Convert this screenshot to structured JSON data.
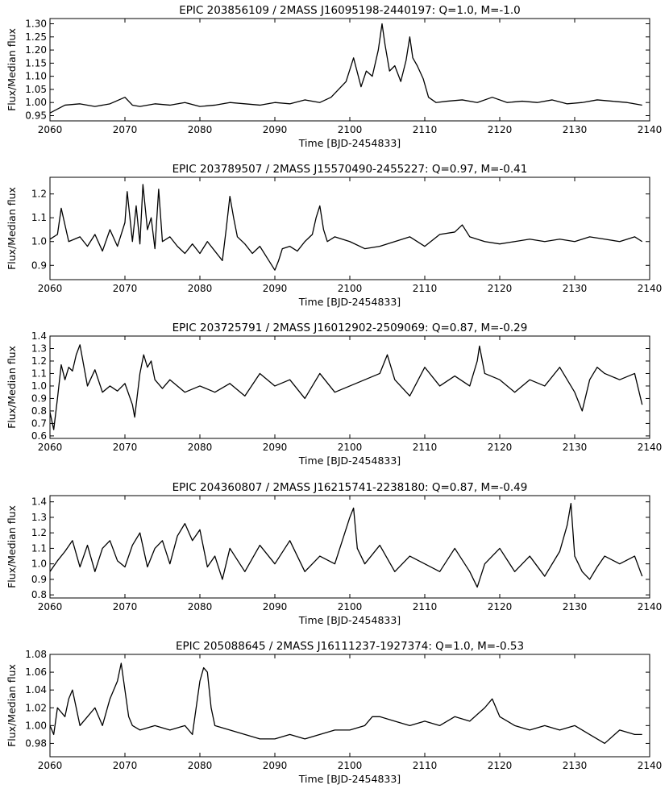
{
  "figure": {
    "background": "#ffffff",
    "line_color": "#000000"
  },
  "chart_data": [
    {
      "type": "line",
      "title": "EPIC 203856109 / 2MASS J16095198-2440197: Q=1.0, M=-1.0",
      "xlabel": "Time [BJD-2454833]",
      "ylabel": "Flux/Median flux",
      "xlim": [
        2060,
        2140
      ],
      "ylim": [
        0.93,
        1.32
      ],
      "xticks": [
        2060,
        2070,
        2080,
        2090,
        2100,
        2110,
        2120,
        2130,
        2140
      ],
      "yticks": [
        0.95,
        1.0,
        1.05,
        1.1,
        1.15,
        1.2,
        1.25,
        1.3
      ],
      "ytick_labels": [
        "0.95",
        "1.00",
        "1.05",
        "1.10",
        "1.15",
        "1.20",
        "1.25",
        "1.30"
      ],
      "grid": false,
      "series": [
        {
          "x": [
            2060.0,
            2062.0,
            2064.0,
            2066.0,
            2068.0,
            2070.0,
            2071.0,
            2072.0,
            2074.0,
            2076.0,
            2078.0,
            2080.0,
            2082.0,
            2084.0,
            2086.0,
            2088.0,
            2090.0,
            2092.0,
            2094.0,
            2096.0,
            2097.5,
            2098.5,
            2099.5,
            2100.5,
            2101.5,
            2102.2,
            2103.0,
            2103.8,
            2104.3,
            2104.7,
            2105.3,
            2106.0,
            2106.8,
            2107.5,
            2108.0,
            2108.4,
            2109.0,
            2109.8,
            2110.5,
            2111.5,
            2113.0,
            2115.0,
            2117.0,
            2119.0,
            2121.0,
            2123.0,
            2125.0,
            2127.0,
            2129.0,
            2131.0,
            2133.0,
            2135.0,
            2137.0,
            2139.0
          ],
          "y": [
            0.96,
            0.99,
            0.995,
            0.985,
            0.995,
            1.02,
            0.99,
            0.985,
            0.995,
            0.99,
            1.0,
            0.985,
            0.99,
            1.0,
            0.995,
            0.99,
            1.0,
            0.995,
            1.01,
            1.0,
            1.02,
            1.05,
            1.08,
            1.17,
            1.06,
            1.12,
            1.1,
            1.2,
            1.3,
            1.22,
            1.12,
            1.14,
            1.08,
            1.16,
            1.25,
            1.17,
            1.14,
            1.09,
            1.02,
            1.0,
            1.005,
            1.01,
            1.0,
            1.02,
            1.0,
            1.005,
            1.0,
            1.01,
            0.995,
            1.0,
            1.01,
            1.005,
            1.0,
            0.99
          ]
        }
      ]
    },
    {
      "type": "line",
      "title": "EPIC 203789507 / 2MASS J15570490-2455227: Q=0.97, M=-0.41",
      "xlabel": "Time [BJD-2454833]",
      "ylabel": "Flux/Median flux",
      "xlim": [
        2060,
        2140
      ],
      "ylim": [
        0.84,
        1.27
      ],
      "xticks": [
        2060,
        2070,
        2080,
        2090,
        2100,
        2110,
        2120,
        2130,
        2140
      ],
      "yticks": [
        0.9,
        1.0,
        1.1,
        1.2
      ],
      "ytick_labels": [
        "0.9",
        "1.0",
        "1.1",
        "1.2"
      ],
      "grid": false,
      "series": [
        {
          "x": [
            2060.0,
            2061.0,
            2061.5,
            2062.5,
            2064.0,
            2065.0,
            2066.0,
            2067.0,
            2068.0,
            2069.0,
            2070.0,
            2070.3,
            2071.0,
            2071.5,
            2072.0,
            2072.4,
            2073.0,
            2073.5,
            2074.0,
            2074.5,
            2075.0,
            2076.0,
            2077.0,
            2078.0,
            2079.0,
            2080.0,
            2081.0,
            2082.0,
            2083.0,
            2083.5,
            2084.0,
            2084.5,
            2085.0,
            2086.0,
            2087.0,
            2088.0,
            2089.0,
            2090.0,
            2090.5,
            2091.0,
            2092.0,
            2093.0,
            2094.0,
            2095.0,
            2095.5,
            2096.0,
            2096.5,
            2097.0,
            2098.0,
            2100.0,
            2102.0,
            2104.0,
            2106.0,
            2108.0,
            2110.0,
            2112.0,
            2114.0,
            2115.0,
            2116.0,
            2118.0,
            2120.0,
            2122.0,
            2124.0,
            2126.0,
            2128.0,
            2130.0,
            2132.0,
            2134.0,
            2136.0,
            2138.0,
            2139.0
          ],
          "y": [
            1.01,
            1.03,
            1.14,
            1.0,
            1.02,
            0.98,
            1.03,
            0.96,
            1.05,
            0.98,
            1.08,
            1.21,
            1.0,
            1.15,
            0.99,
            1.24,
            1.05,
            1.1,
            0.97,
            1.22,
            1.0,
            1.02,
            0.98,
            0.95,
            0.99,
            0.95,
            1.0,
            0.96,
            0.92,
            1.05,
            1.19,
            1.1,
            1.02,
            0.99,
            0.95,
            0.98,
            0.93,
            0.88,
            0.92,
            0.97,
            0.98,
            0.96,
            1.0,
            1.03,
            1.1,
            1.15,
            1.05,
            1.0,
            1.02,
            1.0,
            0.97,
            0.98,
            1.0,
            1.02,
            0.98,
            1.03,
            1.04,
            1.07,
            1.02,
            1.0,
            0.99,
            1.0,
            1.01,
            1.0,
            1.01,
            1.0,
            1.02,
            1.01,
            1.0,
            1.02,
            1.0
          ]
        }
      ]
    },
    {
      "type": "line",
      "title": "EPIC 203725791 / 2MASS J16012902-2509069: Q=0.87, M=-0.29",
      "xlabel": "Time [BJD-2454833]",
      "ylabel": "Flux/Median flux",
      "xlim": [
        2060,
        2140
      ],
      "ylim": [
        0.58,
        1.4
      ],
      "xticks": [
        2060,
        2070,
        2080,
        2090,
        2100,
        2110,
        2120,
        2130,
        2140
      ],
      "yticks": [
        0.6,
        0.7,
        0.8,
        0.9,
        1.0,
        1.1,
        1.2,
        1.3,
        1.4
      ],
      "ytick_labels": [
        "0.6",
        "0.7",
        "0.8",
        "0.9",
        "1.0",
        "1.1",
        "1.2",
        "1.3",
        "1.4"
      ],
      "grid": false,
      "series": [
        {
          "x": [
            2060.0,
            2060.5,
            2061.0,
            2061.5,
            2062.0,
            2062.5,
            2063.0,
            2063.5,
            2064.0,
            2065.0,
            2066.0,
            2067.0,
            2068.0,
            2069.0,
            2070.0,
            2071.0,
            2071.3,
            2072.0,
            2072.5,
            2073.0,
            2073.5,
            2074.0,
            2075.0,
            2076.0,
            2078.0,
            2080.0,
            2082.0,
            2084.0,
            2086.0,
            2088.0,
            2090.0,
            2092.0,
            2094.0,
            2096.0,
            2098.0,
            2100.0,
            2102.0,
            2104.0,
            2105.0,
            2106.0,
            2108.0,
            2110.0,
            2112.0,
            2114.0,
            2116.0,
            2117.0,
            2117.3,
            2118.0,
            2120.0,
            2122.0,
            2124.0,
            2126.0,
            2128.0,
            2129.0,
            2130.0,
            2131.0,
            2132.0,
            2133.0,
            2134.0,
            2136.0,
            2138.0,
            2139.0
          ],
          "y": [
            0.79,
            0.65,
            0.9,
            1.17,
            1.05,
            1.15,
            1.12,
            1.25,
            1.33,
            1.0,
            1.13,
            0.95,
            1.0,
            0.96,
            1.02,
            0.85,
            0.75,
            1.1,
            1.25,
            1.15,
            1.2,
            1.05,
            0.98,
            1.05,
            0.95,
            1.0,
            0.95,
            1.02,
            0.92,
            1.1,
            1.0,
            1.05,
            0.9,
            1.1,
            0.95,
            1.0,
            1.05,
            1.1,
            1.25,
            1.05,
            0.92,
            1.15,
            1.0,
            1.08,
            1.0,
            1.2,
            1.32,
            1.1,
            1.05,
            0.95,
            1.05,
            1.0,
            1.15,
            1.05,
            0.95,
            0.8,
            1.05,
            1.15,
            1.1,
            1.05,
            1.1,
            0.85
          ]
        }
      ]
    },
    {
      "type": "line",
      "title": "EPIC 204360807 / 2MASS J16215741-2238180: Q=0.87, M=-0.49",
      "xlabel": "Time [BJD-2454833]",
      "ylabel": "Flux/Median flux",
      "xlim": [
        2060,
        2140
      ],
      "ylim": [
        0.78,
        1.44
      ],
      "xticks": [
        2060,
        2070,
        2080,
        2090,
        2100,
        2110,
        2120,
        2130,
        2140
      ],
      "yticks": [
        0.8,
        0.9,
        1.0,
        1.1,
        1.2,
        1.3,
        1.4
      ],
      "ytick_labels": [
        "0.8",
        "0.9",
        "1.0",
        "1.1",
        "1.2",
        "1.3",
        "1.4"
      ],
      "grid": false,
      "series": [
        {
          "x": [
            2060.0,
            2061.0,
            2062.0,
            2063.0,
            2064.0,
            2065.0,
            2066.0,
            2067.0,
            2068.0,
            2069.0,
            2070.0,
            2071.0,
            2072.0,
            2073.0,
            2074.0,
            2075.0,
            2076.0,
            2077.0,
            2078.0,
            2079.0,
            2080.0,
            2081.0,
            2082.0,
            2083.0,
            2084.0,
            2086.0,
            2088.0,
            2090.0,
            2092.0,
            2094.0,
            2096.0,
            2098.0,
            2099.0,
            2100.0,
            2100.5,
            2101.0,
            2102.0,
            2104.0,
            2106.0,
            2108.0,
            2110.0,
            2112.0,
            2114.0,
            2116.0,
            2117.0,
            2118.0,
            2120.0,
            2122.0,
            2124.0,
            2126.0,
            2128.0,
            2129.0,
            2129.5,
            2130.0,
            2131.0,
            2132.0,
            2133.0,
            2134.0,
            2136.0,
            2138.0,
            2139.0
          ],
          "y": [
            0.95,
            1.02,
            1.08,
            1.15,
            0.98,
            1.12,
            0.95,
            1.1,
            1.15,
            1.02,
            0.98,
            1.12,
            1.2,
            0.98,
            1.1,
            1.15,
            1.0,
            1.18,
            1.26,
            1.15,
            1.22,
            0.98,
            1.05,
            0.9,
            1.1,
            0.95,
            1.12,
            1.0,
            1.15,
            0.95,
            1.05,
            1.0,
            1.15,
            1.3,
            1.36,
            1.1,
            1.0,
            1.12,
            0.95,
            1.05,
            1.0,
            0.95,
            1.1,
            0.95,
            0.85,
            1.0,
            1.1,
            0.95,
            1.05,
            0.92,
            1.08,
            1.25,
            1.39,
            1.05,
            0.95,
            0.9,
            0.98,
            1.05,
            1.0,
            1.05,
            0.92
          ]
        }
      ]
    },
    {
      "type": "line",
      "title": "EPIC 205088645 / 2MASS J16111237-1927374: Q=1.0, M=-0.53",
      "xlabel": "Time [BJD-2454833]",
      "ylabel": "Flux/Median flux",
      "xlim": [
        2060,
        2140
      ],
      "ylim": [
        0.965,
        1.08
      ],
      "xticks": [
        2060,
        2070,
        2080,
        2090,
        2100,
        2110,
        2120,
        2130,
        2140
      ],
      "yticks": [
        0.98,
        1.0,
        1.02,
        1.04,
        1.06,
        1.08
      ],
      "ytick_labels": [
        "0.98",
        "1.00",
        "1.02",
        "1.04",
        "1.06",
        "1.08"
      ],
      "grid": false,
      "series": [
        {
          "x": [
            2060.0,
            2060.5,
            2061.0,
            2062.0,
            2062.5,
            2063.0,
            2064.0,
            2065.0,
            2066.0,
            2067.0,
            2068.0,
            2069.0,
            2069.5,
            2070.0,
            2070.5,
            2071.0,
            2072.0,
            2074.0,
            2076.0,
            2078.0,
            2079.0,
            2080.0,
            2080.5,
            2081.0,
            2081.5,
            2082.0,
            2084.0,
            2086.0,
            2088.0,
            2090.0,
            2092.0,
            2094.0,
            2096.0,
            2098.0,
            2100.0,
            2102.0,
            2103.0,
            2104.0,
            2106.0,
            2108.0,
            2110.0,
            2112.0,
            2114.0,
            2116.0,
            2118.0,
            2119.0,
            2120.0,
            2122.0,
            2124.0,
            2126.0,
            2128.0,
            2130.0,
            2132.0,
            2134.0,
            2136.0,
            2138.0,
            2139.0
          ],
          "y": [
            1.0,
            0.99,
            1.02,
            1.01,
            1.03,
            1.04,
            1.0,
            1.01,
            1.02,
            1.0,
            1.03,
            1.05,
            1.07,
            1.04,
            1.01,
            1.0,
            0.995,
            1.0,
            0.995,
            1.0,
            0.99,
            1.05,
            1.065,
            1.06,
            1.02,
            1.0,
            0.995,
            0.99,
            0.985,
            0.985,
            0.99,
            0.985,
            0.99,
            0.995,
            0.995,
            1.0,
            1.01,
            1.01,
            1.005,
            1.0,
            1.005,
            1.0,
            1.01,
            1.005,
            1.02,
            1.03,
            1.01,
            1.0,
            0.995,
            1.0,
            0.995,
            1.0,
            0.99,
            0.98,
            0.995,
            0.99,
            0.99
          ]
        }
      ]
    }
  ]
}
